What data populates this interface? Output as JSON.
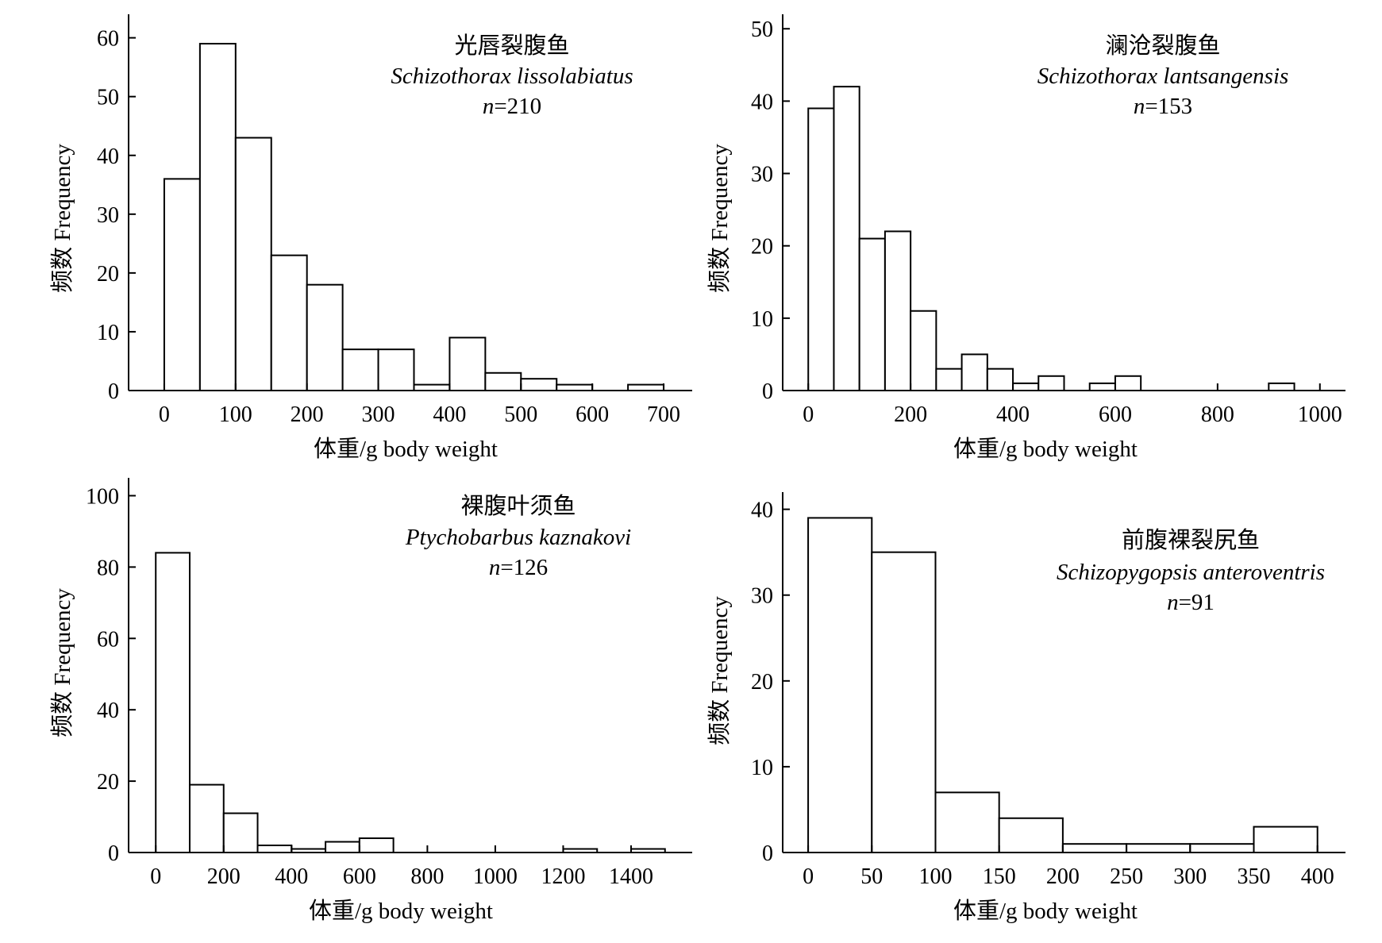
{
  "chart_data": [
    {
      "type": "bar",
      "title": "光唇裂腹鱼",
      "subtitle": "Schizothorax lissolabiatus",
      "n_prefix": "n",
      "n_value": "=210",
      "xlabel": "体重/g body weight",
      "ylabel": "频数 Frequency",
      "xlim": [
        -50,
        740
      ],
      "ylim": [
        0,
        64
      ],
      "xticks": [
        0,
        100,
        200,
        300,
        400,
        500,
        600,
        700
      ],
      "yticks": [
        0,
        10,
        20,
        30,
        40,
        50,
        60
      ],
      "bin_width": 50,
      "bins": [
        {
          "start": 0,
          "count": 36
        },
        {
          "start": 50,
          "count": 59
        },
        {
          "start": 100,
          "count": 43
        },
        {
          "start": 150,
          "count": 23
        },
        {
          "start": 200,
          "count": 18
        },
        {
          "start": 250,
          "count": 7
        },
        {
          "start": 300,
          "count": 7
        },
        {
          "start": 350,
          "count": 1
        },
        {
          "start": 400,
          "count": 9
        },
        {
          "start": 450,
          "count": 3
        },
        {
          "start": 500,
          "count": 2
        },
        {
          "start": 550,
          "count": 1
        },
        {
          "start": 600,
          "count": 0
        },
        {
          "start": 650,
          "count": 1
        }
      ]
    },
    {
      "type": "bar",
      "title": "澜沧裂腹鱼",
      "subtitle": "Schizothorax lantsangensis",
      "n_prefix": "n",
      "n_value": "=153",
      "xlabel": "体重/g body weight",
      "ylabel": "频数 Frequency",
      "xlim": [
        -50,
        1050
      ],
      "ylim": [
        0,
        52
      ],
      "xticks": [
        0,
        200,
        400,
        600,
        800,
        1000
      ],
      "yticks": [
        0,
        10,
        20,
        30,
        40,
        50
      ],
      "bin_width": 50,
      "bins": [
        {
          "start": 0,
          "count": 39
        },
        {
          "start": 50,
          "count": 42
        },
        {
          "start": 100,
          "count": 21
        },
        {
          "start": 150,
          "count": 22
        },
        {
          "start": 200,
          "count": 11
        },
        {
          "start": 250,
          "count": 3
        },
        {
          "start": 300,
          "count": 5
        },
        {
          "start": 350,
          "count": 3
        },
        {
          "start": 400,
          "count": 1
        },
        {
          "start": 450,
          "count": 2
        },
        {
          "start": 500,
          "count": 0
        },
        {
          "start": 550,
          "count": 1
        },
        {
          "start": 600,
          "count": 2
        },
        {
          "start": 900,
          "count": 1
        }
      ]
    },
    {
      "type": "bar",
      "title": "裸腹叶须鱼",
      "subtitle": "Ptychobarbus kaznakovi",
      "n_prefix": "n",
      "n_value": "=126",
      "xlabel": "体重/g body weight",
      "ylabel": "频数 Frequency",
      "xlim": [
        -80,
        1580
      ],
      "ylim": [
        0,
        105
      ],
      "xticks": [
        0,
        200,
        400,
        600,
        800,
        1000,
        1200,
        1400
      ],
      "yticks": [
        0,
        20,
        40,
        60,
        80,
        100
      ],
      "bin_width": 100,
      "bins": [
        {
          "start": 0,
          "count": 84
        },
        {
          "start": 100,
          "count": 19
        },
        {
          "start": 200,
          "count": 11
        },
        {
          "start": 300,
          "count": 2
        },
        {
          "start": 400,
          "count": 1
        },
        {
          "start": 500,
          "count": 3
        },
        {
          "start": 600,
          "count": 4
        },
        {
          "start": 1200,
          "count": 1
        },
        {
          "start": 1400,
          "count": 1
        }
      ]
    },
    {
      "type": "bar",
      "title": "前腹裸裂尻鱼",
      "subtitle": "Schizopygopsis anteroventris",
      "n_prefix": "n",
      "n_value": "=91",
      "xlabel": "体重/g body weight",
      "ylabel": "频数 Frequency",
      "xlim": [
        -20,
        422
      ],
      "ylim": [
        0,
        42
      ],
      "xticks": [
        0,
        50,
        100,
        150,
        200,
        250,
        300,
        350,
        400
      ],
      "yticks": [
        0,
        10,
        20,
        30,
        40
      ],
      "bin_width": 50,
      "bins": [
        {
          "start": 0,
          "count": 39
        },
        {
          "start": 50,
          "count": 35
        },
        {
          "start": 100,
          "count": 7
        },
        {
          "start": 150,
          "count": 4
        },
        {
          "start": 200,
          "count": 1
        },
        {
          "start": 250,
          "count": 1
        },
        {
          "start": 300,
          "count": 1
        },
        {
          "start": 350,
          "count": 3
        }
      ]
    }
  ]
}
